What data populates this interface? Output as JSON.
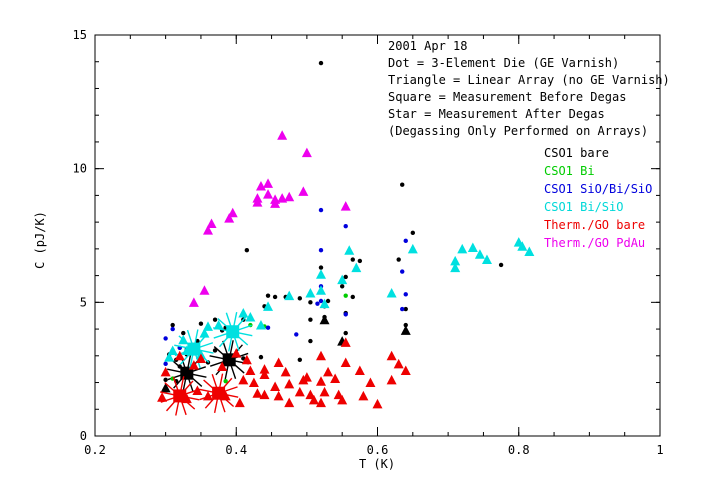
{
  "chart_data": {
    "type": "scatter",
    "xlabel": "T (K)",
    "ylabel": "C (pJ/K)",
    "xlim": [
      0.2,
      1.0
    ],
    "ylim": [
      0,
      15
    ],
    "xticks": [
      0.2,
      0.4,
      0.6,
      0.8,
      1
    ],
    "xtick_labels": [
      "0.2",
      "0.4",
      "0.6",
      "0.8",
      "1"
    ],
    "yticks": [
      0,
      5,
      10,
      15
    ],
    "ytick_labels": [
      "0",
      "5",
      "10",
      "15"
    ],
    "grid": false,
    "annotations": [
      "2001 Apr 18",
      "Dot = 3-Element Die (GE Varnish)",
      "Triangle = Linear Array (no GE Varnish)",
      "Square = Measurement Before Degas",
      "Star = Measurement After Degas",
      "(Degassing Only Performed on Arrays)"
    ],
    "legend_position": "right",
    "series": [
      {
        "name": "CSO1 bare",
        "color": "#000000",
        "dots": [
          [
            0.52,
            13.95
          ],
          [
            0.635,
            9.4
          ],
          [
            0.65,
            7.6
          ],
          [
            0.415,
            6.95
          ],
          [
            0.565,
            6.6
          ],
          [
            0.575,
            6.55
          ],
          [
            0.775,
            6.4
          ],
          [
            0.52,
            6.3
          ],
          [
            0.63,
            6.6
          ],
          [
            0.555,
            5.95
          ],
          [
            0.55,
            5.6
          ],
          [
            0.445,
            5.25
          ],
          [
            0.455,
            5.2
          ],
          [
            0.47,
            5.2
          ],
          [
            0.49,
            5.15
          ],
          [
            0.565,
            5.2
          ],
          [
            0.53,
            5.05
          ],
          [
            0.505,
            5.0
          ],
          [
            0.525,
            4.85
          ],
          [
            0.44,
            4.85
          ],
          [
            0.555,
            4.6
          ],
          [
            0.64,
            4.75
          ],
          [
            0.505,
            4.35
          ],
          [
            0.525,
            4.45
          ],
          [
            0.37,
            4.35
          ],
          [
            0.35,
            4.2
          ],
          [
            0.31,
            4.15
          ],
          [
            0.385,
            4.05
          ],
          [
            0.41,
            4.35
          ],
          [
            0.38,
            3.95
          ],
          [
            0.64,
            4.15
          ],
          [
            0.555,
            3.85
          ],
          [
            0.325,
            3.85
          ],
          [
            0.39,
            3.75
          ],
          [
            0.505,
            3.55
          ],
          [
            0.345,
            3.55
          ],
          [
            0.335,
            3.4
          ],
          [
            0.31,
            3.2
          ],
          [
            0.33,
            3.25
          ],
          [
            0.37,
            3.2
          ],
          [
            0.305,
            3.05
          ],
          [
            0.33,
            3.05
          ],
          [
            0.435,
            2.95
          ],
          [
            0.49,
            2.85
          ],
          [
            0.315,
            2.85
          ],
          [
            0.41,
            2.9
          ],
          [
            0.36,
            2.75
          ],
          [
            0.32,
            2.6
          ],
          [
            0.3,
            2.1
          ],
          [
            0.315,
            2.05
          ]
        ],
        "triangles": [
          [
            0.525,
            4.35
          ],
          [
            0.55,
            3.55
          ],
          [
            0.64,
            3.95
          ],
          [
            0.3,
            1.8
          ]
        ],
        "squares": [
          [
            0.33,
            2.35
          ],
          [
            0.39,
            2.85
          ]
        ],
        "stars": [
          [
            0.33,
            2.35
          ],
          [
            0.39,
            2.85
          ]
        ]
      },
      {
        "name": "CSO1 Bi",
        "color": "#00cc00",
        "dots": [
          [
            0.555,
            5.25
          ],
          [
            0.44,
            4.1
          ],
          [
            0.42,
            4.15
          ],
          [
            0.32,
            3.3
          ],
          [
            0.345,
            3.25
          ],
          [
            0.31,
            2.15
          ],
          [
            0.385,
            2.05
          ]
        ],
        "triangles": [],
        "squares": [],
        "stars": []
      },
      {
        "name": "CSO1 SiO/Bi/SiO",
        "color": "#0000dd",
        "dots": [
          [
            0.52,
            8.45
          ],
          [
            0.555,
            7.85
          ],
          [
            0.64,
            7.3
          ],
          [
            0.52,
            6.95
          ],
          [
            0.635,
            6.15
          ],
          [
            0.52,
            5.6
          ],
          [
            0.64,
            5.3
          ],
          [
            0.52,
            5.05
          ],
          [
            0.635,
            4.75
          ],
          [
            0.515,
            4.95
          ],
          [
            0.555,
            4.55
          ],
          [
            0.31,
            4.0
          ],
          [
            0.3,
            3.65
          ],
          [
            0.32,
            3.3
          ],
          [
            0.485,
            3.8
          ],
          [
            0.445,
            4.05
          ],
          [
            0.3,
            2.7
          ]
        ],
        "triangles": [],
        "squares": [],
        "stars": []
      },
      {
        "name": "CSO1 Bi/SiO",
        "color": "#00e0e0",
        "dots": [],
        "triangles": [
          [
            0.72,
            7.0
          ],
          [
            0.735,
            7.05
          ],
          [
            0.745,
            6.8
          ],
          [
            0.755,
            6.6
          ],
          [
            0.71,
            6.55
          ],
          [
            0.71,
            6.3
          ],
          [
            0.8,
            7.25
          ],
          [
            0.815,
            6.9
          ],
          [
            0.805,
            7.1
          ],
          [
            0.65,
            7.0
          ],
          [
            0.56,
            6.95
          ],
          [
            0.52,
            6.05
          ],
          [
            0.57,
            6.3
          ],
          [
            0.62,
            5.35
          ],
          [
            0.475,
            5.25
          ],
          [
            0.505,
            5.35
          ],
          [
            0.55,
            5.85
          ],
          [
            0.52,
            5.45
          ],
          [
            0.525,
            4.95
          ],
          [
            0.445,
            4.85
          ],
          [
            0.42,
            4.45
          ],
          [
            0.41,
            4.6
          ],
          [
            0.375,
            4.15
          ],
          [
            0.36,
            4.1
          ],
          [
            0.435,
            4.15
          ],
          [
            0.355,
            3.85
          ],
          [
            0.325,
            3.6
          ],
          [
            0.33,
            3.2
          ],
          [
            0.35,
            3.05
          ],
          [
            0.31,
            3.2
          ],
          [
            0.305,
            2.95
          ]
        ],
        "squares": [
          [
            0.395,
            3.9
          ],
          [
            0.34,
            3.25
          ]
        ],
        "stars": [
          [
            0.395,
            3.9
          ],
          [
            0.34,
            3.25
          ]
        ]
      },
      {
        "name": "Therm./GO bare",
        "color": "#ee0000",
        "dots": [],
        "triangles": [
          [
            0.555,
            3.5
          ],
          [
            0.52,
            3.0
          ],
          [
            0.555,
            2.75
          ],
          [
            0.62,
            3.0
          ],
          [
            0.63,
            2.7
          ],
          [
            0.64,
            2.45
          ],
          [
            0.53,
            2.4
          ],
          [
            0.5,
            2.2
          ],
          [
            0.46,
            2.75
          ],
          [
            0.44,
            2.5
          ],
          [
            0.44,
            2.3
          ],
          [
            0.47,
            2.4
          ],
          [
            0.475,
            1.95
          ],
          [
            0.495,
            2.1
          ],
          [
            0.52,
            2.05
          ],
          [
            0.54,
            2.15
          ],
          [
            0.415,
            2.85
          ],
          [
            0.42,
            2.45
          ],
          [
            0.425,
            2.0
          ],
          [
            0.43,
            1.6
          ],
          [
            0.4,
            3.1
          ],
          [
            0.38,
            2.6
          ],
          [
            0.41,
            2.1
          ],
          [
            0.35,
            2.9
          ],
          [
            0.34,
            2.65
          ],
          [
            0.32,
            3.0
          ],
          [
            0.3,
            2.4
          ],
          [
            0.295,
            1.45
          ],
          [
            0.33,
            1.4
          ],
          [
            0.345,
            1.7
          ],
          [
            0.36,
            1.5
          ],
          [
            0.385,
            1.5
          ],
          [
            0.405,
            1.25
          ],
          [
            0.44,
            1.55
          ],
          [
            0.46,
            1.5
          ],
          [
            0.475,
            1.25
          ],
          [
            0.51,
            1.35
          ],
          [
            0.52,
            1.25
          ],
          [
            0.55,
            1.35
          ],
          [
            0.58,
            1.5
          ],
          [
            0.6,
            1.2
          ],
          [
            0.545,
            1.55
          ],
          [
            0.455,
            1.85
          ],
          [
            0.49,
            1.65
          ],
          [
            0.525,
            1.65
          ],
          [
            0.59,
            2.0
          ],
          [
            0.505,
            1.55
          ],
          [
            0.575,
            2.45
          ],
          [
            0.62,
            2.1
          ]
        ],
        "squares": [
          [
            0.32,
            1.5
          ],
          [
            0.375,
            1.6
          ]
        ],
        "stars": [
          [
            0.32,
            1.5
          ],
          [
            0.375,
            1.6
          ]
        ]
      },
      {
        "name": "Therm./GO PdAu",
        "color": "#ee00ee",
        "dots": [],
        "triangles": [
          [
            0.465,
            11.25
          ],
          [
            0.5,
            10.6
          ],
          [
            0.435,
            9.35
          ],
          [
            0.445,
            9.45
          ],
          [
            0.43,
            8.9
          ],
          [
            0.445,
            9.05
          ],
          [
            0.455,
            8.85
          ],
          [
            0.465,
            8.9
          ],
          [
            0.475,
            8.95
          ],
          [
            0.495,
            9.15
          ],
          [
            0.455,
            8.7
          ],
          [
            0.43,
            8.75
          ],
          [
            0.395,
            8.35
          ],
          [
            0.39,
            8.15
          ],
          [
            0.365,
            7.95
          ],
          [
            0.36,
            7.7
          ],
          [
            0.555,
            8.6
          ],
          [
            0.355,
            5.45
          ],
          [
            0.34,
            5.0
          ]
        ],
        "squares": [],
        "stars": []
      }
    ]
  }
}
